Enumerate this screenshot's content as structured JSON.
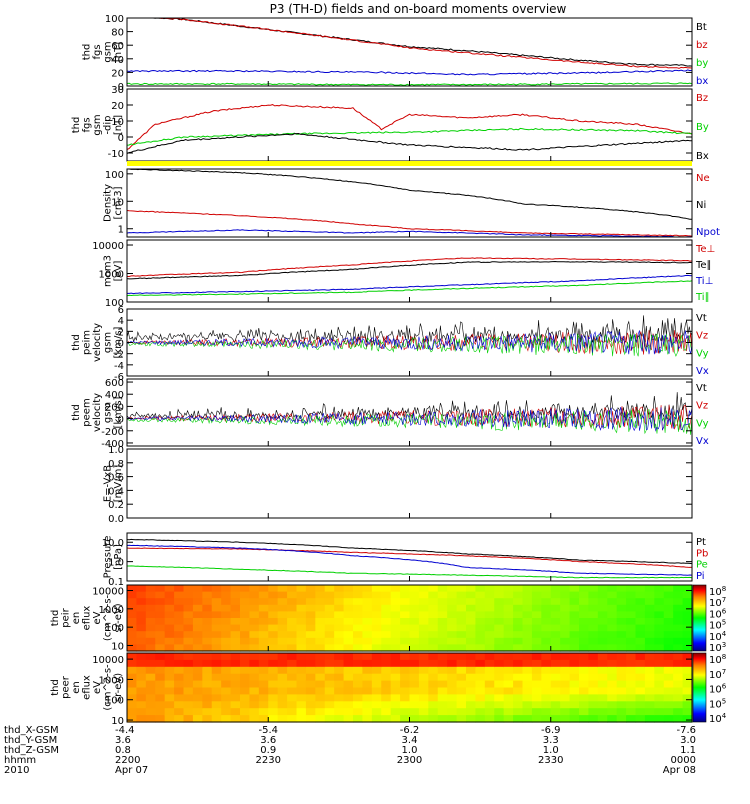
{
  "title": "P3 (TH-D) fields and on-board moments overview",
  "colors": {
    "black": "#000000",
    "red": "#d00000",
    "green": "#00d000",
    "blue": "#0000d0",
    "yellow": "#ffff00"
  },
  "chart_data": [
    {
      "type": "line",
      "ylabel": [
        "thd",
        "fgs",
        "gsm",
        "[nT]"
      ],
      "yticks": [
        "100",
        "80",
        "60",
        "40",
        "20",
        "0"
      ],
      "ylim": [
        0,
        100
      ],
      "series": [
        {
          "name": "Bt",
          "color": "black",
          "x": [
            0,
            0.1,
            0.2,
            0.3,
            0.45,
            0.5,
            0.6,
            0.7,
            0.8,
            0.9,
            1.0
          ],
          "values": [
            103,
            98,
            88,
            78,
            63,
            58,
            52,
            45,
            38,
            32,
            30
          ]
        },
        {
          "name": "bz",
          "color": "red",
          "x": [
            0,
            0.1,
            0.2,
            0.3,
            0.45,
            0.5,
            0.6,
            0.7,
            0.8,
            0.9,
            1.0
          ],
          "values": [
            103,
            98,
            88,
            78,
            62,
            56,
            49,
            42,
            35,
            29,
            26
          ]
        },
        {
          "name": "by",
          "color": "green",
          "x": [
            0,
            0.2,
            0.4,
            0.6,
            0.8,
            1.0
          ],
          "values": [
            3,
            3,
            2,
            2,
            3,
            4
          ]
        },
        {
          "name": "bx",
          "color": "blue",
          "x": [
            0,
            0.2,
            0.45,
            0.6,
            0.8,
            1.0
          ],
          "values": [
            22,
            22,
            20,
            17,
            19,
            23
          ]
        }
      ]
    },
    {
      "type": "line",
      "ylabel": [
        "thd",
        "fgs",
        "gsm",
        "-dip",
        "[nT]"
      ],
      "yticks": [
        "30",
        "20",
        "10",
        "0",
        "-10"
      ],
      "ylim": [
        -15,
        30
      ],
      "series": [
        {
          "name": "Bz",
          "color": "red",
          "x": [
            0,
            0.05,
            0.15,
            0.25,
            0.4,
            0.45,
            0.5,
            0.6,
            0.7,
            0.8,
            0.9,
            1.0
          ],
          "values": [
            -8,
            8,
            16,
            20,
            18,
            5,
            14,
            12,
            14,
            10,
            8,
            2
          ]
        },
        {
          "name": "By",
          "color": "green",
          "x": [
            0,
            0.1,
            0.3,
            0.5,
            0.7,
            0.9,
            1.0
          ],
          "values": [
            -5,
            0,
            2,
            3,
            5,
            4,
            2
          ]
        },
        {
          "name": "Bx",
          "color": "black",
          "x": [
            0,
            0.1,
            0.3,
            0.5,
            0.7,
            0.9,
            1.0
          ],
          "values": [
            -10,
            -2,
            2,
            -5,
            -8,
            -4,
            -2
          ]
        }
      ]
    },
    {
      "type": "line",
      "ylabel": [
        "Density",
        "[cm-3]"
      ],
      "yticks": [
        "100",
        "10",
        "1"
      ],
      "ylim": [
        0.5,
        150
      ],
      "log": true,
      "series": [
        {
          "name": "Ne",
          "color": "red",
          "x": [
            0,
            0.2,
            0.4,
            0.5,
            0.7,
            1.0
          ],
          "values": [
            4.5,
            3,
            1.5,
            1,
            0.7,
            0.55
          ]
        },
        {
          "name": "Ni",
          "color": "black",
          "x": [
            0,
            0.2,
            0.4,
            0.5,
            0.7,
            1.0
          ],
          "values": [
            150,
            110,
            50,
            25,
            8,
            2.2
          ]
        },
        {
          "name": "Npot",
          "color": "blue",
          "x": [
            0,
            0.2,
            0.4,
            0.5,
            0.7,
            1.0
          ],
          "values": [
            0.7,
            0.9,
            0.7,
            0.8,
            0.6,
            0.5
          ]
        }
      ]
    },
    {
      "type": "line",
      "ylabel": [
        "mom3",
        "[eV]"
      ],
      "yticks": [
        "10000",
        "1000",
        "100"
      ],
      "ylim": [
        100,
        15000
      ],
      "log": true,
      "series": [
        {
          "name": "Te⊥",
          "color": "red",
          "x": [
            0,
            0.2,
            0.4,
            0.6,
            0.8,
            1.0
          ],
          "values": [
            800,
            1100,
            2000,
            3500,
            3200,
            2800
          ]
        },
        {
          "name": "Te∥",
          "color": "black",
          "x": [
            0,
            0.2,
            0.4,
            0.6,
            0.8,
            1.0
          ],
          "values": [
            650,
            850,
            1400,
            2500,
            2600,
            2400
          ]
        },
        {
          "name": "Ti⊥",
          "color": "blue",
          "x": [
            0,
            0.2,
            0.4,
            0.6,
            0.8,
            1.0
          ],
          "values": [
            200,
            230,
            280,
            400,
            550,
            850
          ]
        },
        {
          "name": "Ti∥",
          "color": "green",
          "x": [
            0,
            0.2,
            0.4,
            0.6,
            0.8,
            1.0
          ],
          "values": [
            170,
            190,
            220,
            300,
            380,
            550
          ]
        }
      ]
    },
    {
      "type": "line",
      "ylabel": [
        "thd",
        "peim",
        "velocity",
        "gsm",
        "[km/s]"
      ],
      "yticks": [
        "6",
        "4",
        "2",
        "0",
        "-2",
        "-4",
        "-6"
      ],
      "ylim": [
        -6,
        6
      ],
      "series": [
        {
          "name": "Vt",
          "color": "black",
          "x": [
            0,
            1
          ],
          "values": [
            1,
            1.5
          ]
        },
        {
          "name": "Vz",
          "color": "red",
          "x": [
            0,
            1
          ],
          "values": [
            0,
            0
          ]
        },
        {
          "name": "Vy",
          "color": "green",
          "x": [
            0,
            1
          ],
          "values": [
            -0.3,
            -0.5
          ]
        },
        {
          "name": "Vx",
          "color": "blue",
          "x": [
            0,
            1
          ],
          "values": [
            0,
            0
          ]
        }
      ]
    },
    {
      "type": "line",
      "ylabel": [
        "thd",
        "peem",
        "velocity",
        "gsm",
        "[km/s]"
      ],
      "yticks": [
        "600",
        "400",
        "200",
        "0",
        "-200",
        "-400"
      ],
      "ylim": [
        -450,
        650
      ],
      "series": [
        {
          "name": "Vt",
          "color": "black",
          "x": [
            0,
            1
          ],
          "values": [
            40,
            110
          ]
        },
        {
          "name": "Vz",
          "color": "red",
          "x": [
            0,
            1
          ],
          "values": [
            10,
            20
          ]
        },
        {
          "name": "Vy",
          "color": "green",
          "x": [
            0,
            1
          ],
          "values": [
            -20,
            -50
          ]
        },
        {
          "name": "Vx",
          "color": "blue",
          "x": [
            0,
            1
          ],
          "values": [
            0,
            0
          ]
        }
      ]
    },
    {
      "type": "line",
      "ylabel": [
        "E=-VxB",
        "[mV/m]"
      ],
      "yticks": [
        "1.0",
        "0.8",
        "0.6",
        "0.4",
        "0.2",
        "0.0"
      ],
      "ylim": [
        0,
        1
      ],
      "series": [
        {
          "name": "Ez",
          "color": "red",
          "x": [],
          "values": []
        },
        {
          "name": "Ey",
          "color": "green",
          "x": [],
          "values": []
        },
        {
          "name": "Ex",
          "color": "blue",
          "x": [],
          "values": []
        }
      ]
    },
    {
      "type": "line",
      "ylabel": [
        "Pressure",
        "[nPa]"
      ],
      "yticks": [
        "10.0",
        "1.0",
        "0.1"
      ],
      "ylim": [
        0.1,
        30
      ],
      "log": true,
      "series": [
        {
          "name": "Pt",
          "color": "black",
          "x": [
            0,
            0.2,
            0.4,
            0.6,
            0.8,
            1.0
          ],
          "values": [
            14,
            10,
            5,
            2.5,
            1.2,
            0.8
          ]
        },
        {
          "name": "Pb",
          "color": "red",
          "x": [
            0,
            0.2,
            0.4,
            0.6,
            0.8,
            1.0
          ],
          "values": [
            5,
            4.5,
            3,
            2,
            1,
            0.5
          ]
        },
        {
          "name": "Pe",
          "color": "green",
          "x": [
            0,
            0.2,
            0.4,
            0.6,
            0.8,
            1.0
          ],
          "values": [
            0.6,
            0.4,
            0.25,
            0.2,
            0.15,
            0.15
          ]
        },
        {
          "name": "Pi",
          "color": "blue",
          "x": [
            0,
            0.2,
            0.4,
            0.6,
            0.8,
            1.0
          ],
          "values": [
            7,
            5,
            2,
            0.5,
            0.25,
            0.2
          ]
        }
      ]
    },
    {
      "type": "heatmap",
      "ylabel": [
        "thd",
        "peir",
        "en",
        "eflux",
        "eV",
        "(cm^2-s-",
        "sr-eV)"
      ],
      "yticks": [
        "10000",
        "1000",
        "100",
        "10"
      ],
      "ylim": [
        5,
        20000
      ],
      "log": true,
      "colorbar": [
        "10^8",
        "10^7",
        "10^6",
        "10^5",
        "10^4",
        "10^3"
      ]
    },
    {
      "type": "heatmap",
      "ylabel": [
        "thd",
        "peer",
        "en",
        "eflux",
        "eV",
        "(cm^2-s-",
        "sr-eV)"
      ],
      "yticks": [
        "10000",
        "1000",
        "100",
        "10"
      ],
      "ylim": [
        8,
        20000
      ],
      "log": true,
      "colorbar": [
        "10^8",
        "10^7",
        "10^6",
        "10^5",
        "10^4"
      ]
    }
  ],
  "xaxis": {
    "row_labels": [
      "thd_X-GSM",
      "thd_Y-GSM",
      "thd_Z-GSM",
      "hhmm",
      "2010"
    ],
    "ticks": [
      {
        "frac": 0.0,
        "vals": [
          "-4.4",
          "3.6",
          "0.8",
          "2200",
          "Apr 07"
        ]
      },
      {
        "frac": 0.25,
        "vals": [
          "-5.4",
          "3.6",
          "0.9",
          "2230",
          ""
        ]
      },
      {
        "frac": 0.5,
        "vals": [
          "-6.2",
          "3.4",
          "1.0",
          "2300",
          ""
        ]
      },
      {
        "frac": 0.75,
        "vals": [
          "-6.9",
          "3.3",
          "1.0",
          "2330",
          ""
        ]
      },
      {
        "frac": 1.0,
        "vals": [
          "-7.6",
          "3.0",
          "1.1",
          "0000",
          "Apr 08"
        ]
      }
    ]
  }
}
